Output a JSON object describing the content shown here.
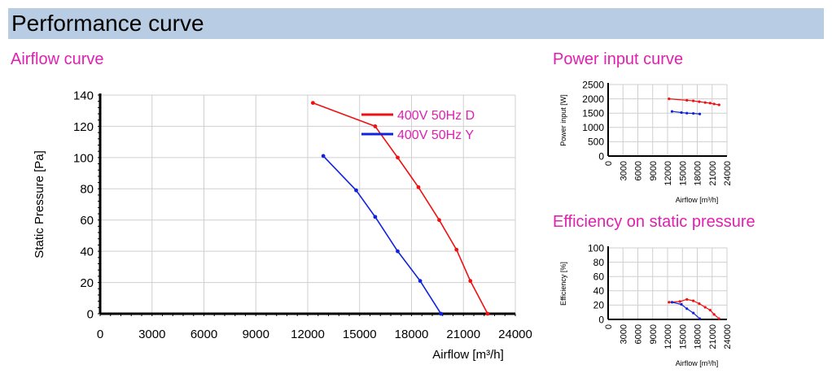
{
  "header": {
    "title": "Performance curve"
  },
  "sections": {
    "airflow": "Airflow curve",
    "power": "Power input curve",
    "efficiency": "Efficiency on static pressure"
  },
  "colors": {
    "header_bg": "#b8cce4",
    "section_title": "#e020b0",
    "series_d": "#ee1111",
    "series_y": "#1122dd"
  },
  "chart_data": [
    {
      "id": "airflow",
      "type": "line",
      "xlabel": "Airflow [m³/h]",
      "ylabel": "Static Pressure [Pa]",
      "xlim": [
        0,
        24000
      ],
      "ylim": [
        0,
        140
      ],
      "xticks": [
        0,
        3000,
        6000,
        9000,
        12000,
        15000,
        18000,
        21000,
        24000
      ],
      "yticks": [
        0,
        20,
        40,
        60,
        80,
        100,
        120,
        140
      ],
      "grid": true,
      "legend": "top-right",
      "series": [
        {
          "name": "400V 50Hz D",
          "color": "#ee1111",
          "x": [
            12300,
            15900,
            17200,
            18400,
            19600,
            20600,
            21400,
            22400
          ],
          "y": [
            135,
            120,
            100,
            81,
            60,
            41,
            21,
            0
          ]
        },
        {
          "name": "400V 50Hz Y",
          "color": "#1122dd",
          "x": [
            12900,
            14800,
            15900,
            17200,
            18500,
            19700
          ],
          "y": [
            101,
            79,
            62,
            40,
            21,
            0
          ]
        }
      ]
    },
    {
      "id": "power",
      "type": "line",
      "xlabel": "Airflow [m³/h]",
      "ylabel": "Power input [W]",
      "xlim": [
        0,
        24000
      ],
      "ylim": [
        0,
        2500
      ],
      "xticks": [
        0,
        3000,
        6000,
        9000,
        12000,
        15000,
        18000,
        21000,
        24000
      ],
      "yticks": [
        0,
        500,
        1000,
        1500,
        2000,
        2500
      ],
      "grid": true,
      "series": [
        {
          "name": "400V 50Hz D",
          "color": "#ee1111",
          "x": [
            12300,
            15900,
            17200,
            18400,
            19600,
            20600,
            21400,
            22400
          ],
          "y": [
            2000,
            1950,
            1930,
            1900,
            1870,
            1850,
            1820,
            1790
          ]
        },
        {
          "name": "400V 50Hz Y",
          "color": "#1122dd",
          "x": [
            12900,
            14800,
            15900,
            17200,
            18500
          ],
          "y": [
            1560,
            1520,
            1500,
            1490,
            1470
          ]
        }
      ]
    },
    {
      "id": "efficiency",
      "type": "line",
      "xlabel": "Airflow [m³/h]",
      "ylabel": "Efficiency [%]",
      "xlim": [
        0,
        24000
      ],
      "ylim": [
        0,
        100
      ],
      "xticks": [
        0,
        3000,
        6000,
        9000,
        12000,
        15000,
        18000,
        21000,
        24000
      ],
      "yticks": [
        0,
        20,
        40,
        60,
        80,
        100
      ],
      "grid": true,
      "series": [
        {
          "name": "400V 50Hz D",
          "color": "#ee1111",
          "x": [
            12300,
            14500,
            15900,
            17200,
            18400,
            19600,
            20600,
            21400,
            22400
          ],
          "y": [
            24,
            25,
            28,
            26,
            22,
            17,
            13,
            7,
            1
          ]
        },
        {
          "name": "400V 50Hz Y",
          "color": "#1122dd",
          "x": [
            12900,
            14800,
            15900,
            17200,
            18500
          ],
          "y": [
            24,
            21,
            15,
            9,
            1
          ]
        }
      ]
    }
  ]
}
